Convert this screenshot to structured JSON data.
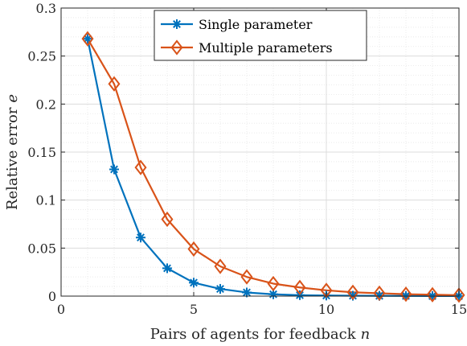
{
  "chart_data": {
    "type": "line",
    "x": [
      1,
      2,
      3,
      4,
      5,
      6,
      7,
      8,
      9,
      10,
      11,
      12,
      13,
      14,
      15
    ],
    "series": [
      {
        "name": "Single parameter",
        "color": "#0072BD",
        "marker": "asterisk",
        "values": [
          0.268,
          0.132,
          0.061,
          0.029,
          0.014,
          0.0075,
          0.0038,
          0.0019,
          0.001,
          0.0006,
          0.0004,
          0.0003,
          0.0002,
          0.0001,
          0.0001
        ]
      },
      {
        "name": "Multiple parameters",
        "color": "#D95319",
        "marker": "diamond",
        "values": [
          0.268,
          0.221,
          0.134,
          0.08,
          0.049,
          0.031,
          0.02,
          0.013,
          0.009,
          0.006,
          0.004,
          0.003,
          0.002,
          0.0015,
          0.001
        ]
      }
    ],
    "xlabel": "Pairs of agents for feedback",
    "xlabel_var": "n",
    "ylabel": "Relative error",
    "ylabel_var": "e",
    "xlim": [
      0,
      15
    ],
    "ylim": [
      0,
      0.3
    ],
    "xticks": [
      0,
      5,
      10,
      15
    ],
    "xtick_labels": [
      "0",
      "5",
      "10",
      "15"
    ],
    "yticks": [
      0,
      0.05,
      0.1,
      0.15,
      0.2,
      0.25,
      0.3
    ],
    "ytick_labels": [
      "0",
      "0.05",
      "0.1",
      "0.15",
      "0.2",
      "0.25",
      "0.3"
    ],
    "grid": true,
    "minor_grid": true,
    "legend_position": "top-center"
  }
}
